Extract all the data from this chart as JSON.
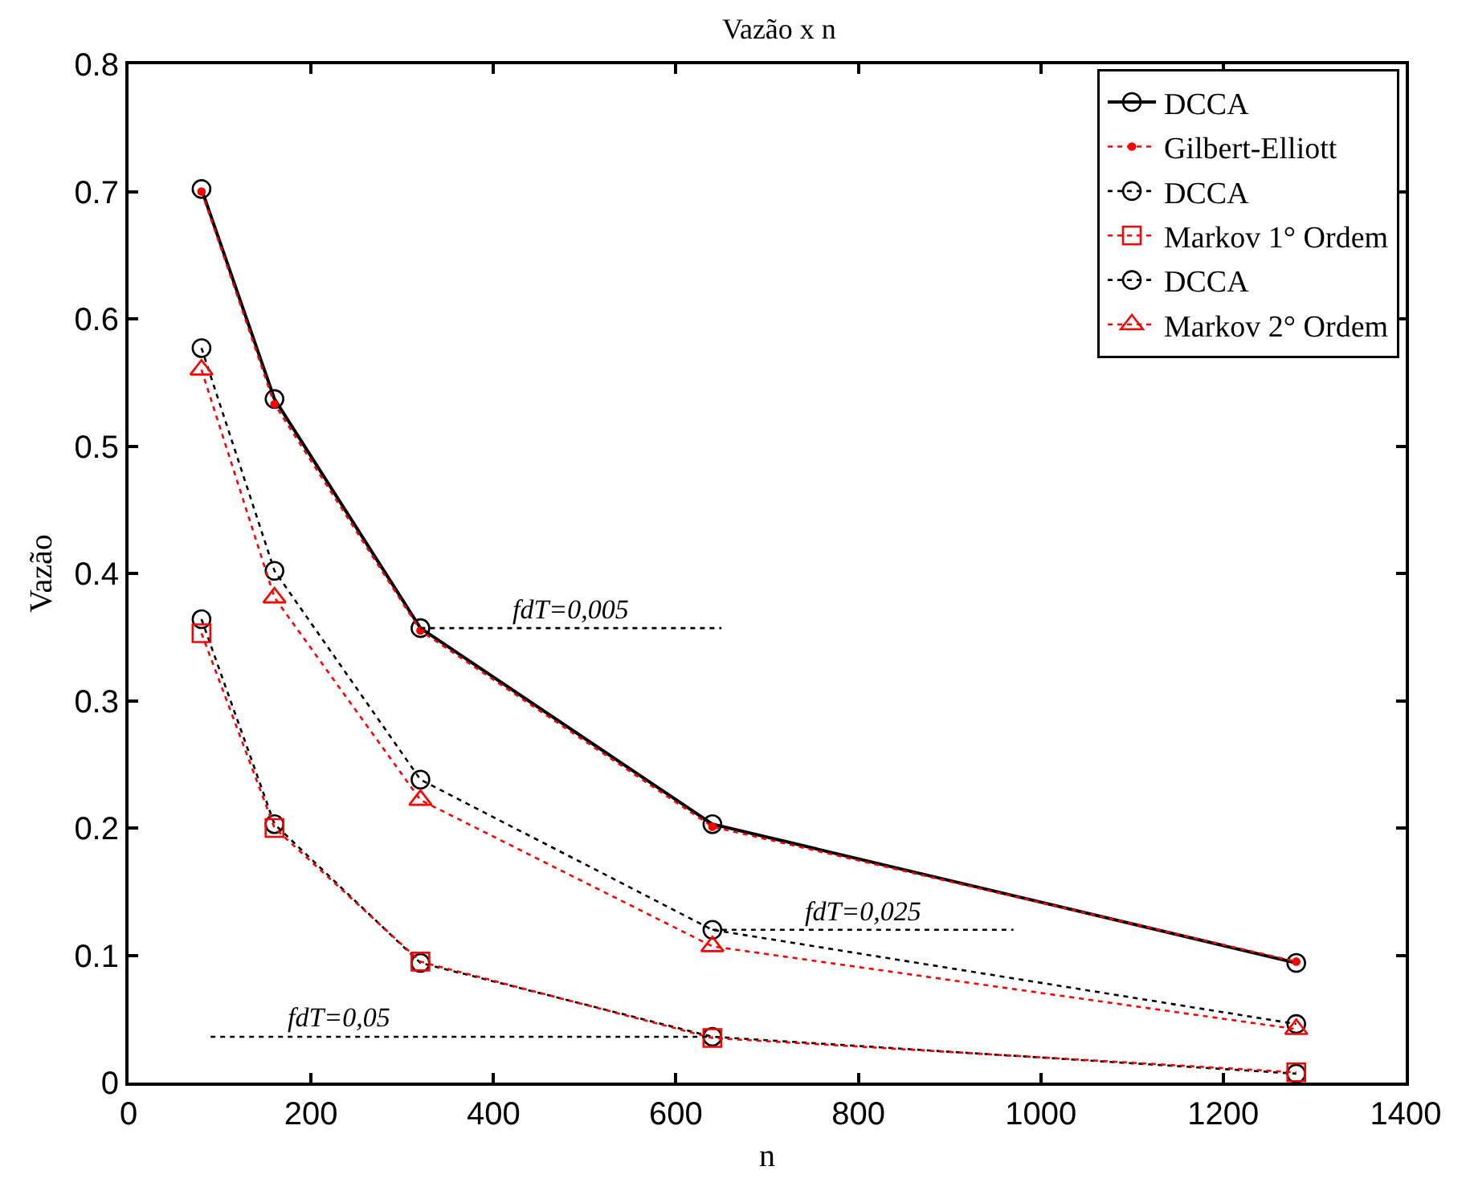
{
  "chart_data": {
    "type": "line",
    "title": "Vazão x n",
    "xlabel": "n",
    "ylabel": "Vazão",
    "x": [
      80,
      160,
      320,
      640,
      1280
    ],
    "series": [
      {
        "name": "DCCA",
        "color": "#000000",
        "marker": "circle",
        "line_style": "solid",
        "values": [
          0.702,
          0.537,
          0.357,
          0.203,
          0.094
        ]
      },
      {
        "name": "Gilbert-Elliott",
        "color": "#ff0000",
        "marker": "dot",
        "line_style": "dotted",
        "values": [
          0.7,
          0.533,
          0.355,
          0.201,
          0.095
        ]
      },
      {
        "name": "DCCA",
        "color": "#000000",
        "marker": "circle",
        "line_style": "dotted",
        "values": [
          0.364,
          0.203,
          0.094,
          0.036,
          0.007
        ]
      },
      {
        "name": "Markov 1° Ordem",
        "color": "#ff0000",
        "marker": "square",
        "line_style": "dotted",
        "values": [
          0.353,
          0.2,
          0.095,
          0.035,
          0.008
        ]
      },
      {
        "name": "DCCA",
        "color": "#000000",
        "marker": "circle",
        "line_style": "dotted",
        "values": [
          0.577,
          0.402,
          0.238,
          0.12,
          0.046
        ]
      },
      {
        "name": "Markov 2° Ordem",
        "color": "#ff0000",
        "marker": "triangle",
        "line_style": "dotted",
        "values": [
          0.56,
          0.381,
          0.222,
          0.107,
          0.042
        ]
      },
      {
        "color": "#000000",
        "marker": "none",
        "line_style": "dotted",
        "x": [
          320,
          650
        ],
        "values": [
          0.357,
          0.357
        ]
      },
      {
        "color": "#000000",
        "marker": "none",
        "line_style": "dotted",
        "x": [
          640,
          970
        ],
        "values": [
          0.12,
          0.12
        ]
      },
      {
        "color": "#000000",
        "marker": "none",
        "line_style": "dotted",
        "x": [
          90,
          640
        ],
        "values": [
          0.036,
          0.036
        ]
      }
    ],
    "annotations": [
      {
        "text": "fdT=0,005",
        "x": 485,
        "y": 0.357
      },
      {
        "text": "fdT=0,025",
        "x": 805,
        "y": 0.12
      },
      {
        "text": "fdT=0,05",
        "x": 230,
        "y": 0.036
      }
    ],
    "xlim": [
      0,
      1400
    ],
    "xticks": [
      0,
      200,
      400,
      600,
      800,
      1000,
      1200,
      1400
    ],
    "ylim": [
      0,
      0.8
    ],
    "yticks": [
      0,
      0.1,
      0.2,
      0.3,
      0.4,
      0.5,
      0.6,
      0.7,
      0.8
    ],
    "legend": "top right"
  }
}
